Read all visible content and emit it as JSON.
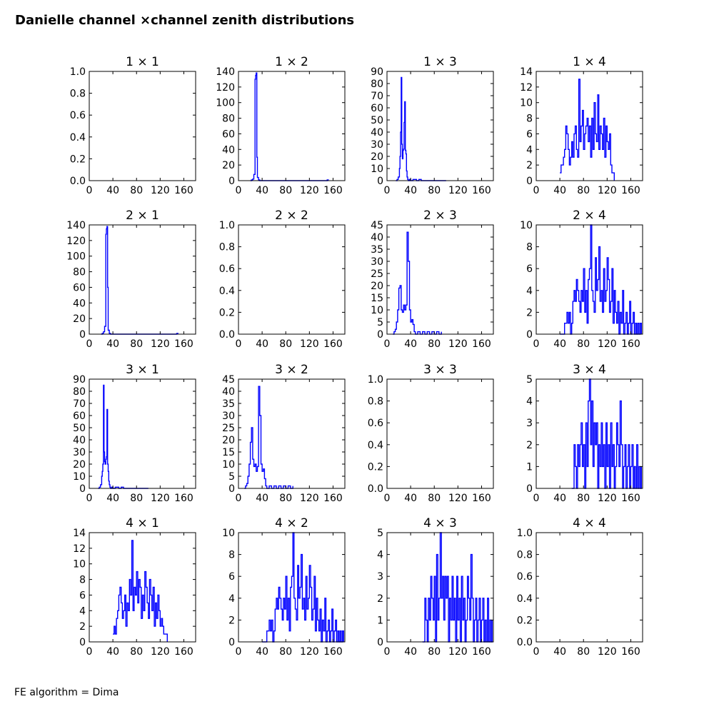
{
  "page": {
    "title": "Danielle channel ×channel zenith distributions",
    "footer": "FE algorithm = Dima"
  },
  "colors": {
    "line": "#0000ff",
    "axes": "#000000",
    "background": "#ffffff"
  },
  "chart_data": [
    {
      "type": "line",
      "title": "1 × 1",
      "xlim": [
        0,
        180
      ],
      "ylim": [
        0,
        1
      ],
      "xticks": [
        0,
        40,
        80,
        120,
        160
      ],
      "yticks": [
        "0.0",
        "0.2",
        "0.4",
        "0.6",
        "0.8",
        "1.0"
      ],
      "x": [],
      "values": []
    },
    {
      "type": "line",
      "title": "1 × 2",
      "xlim": [
        0,
        180
      ],
      "ylim": [
        0,
        140
      ],
      "xticks": [
        0,
        40,
        80,
        120,
        160
      ],
      "yticks": [
        "0",
        "20",
        "40",
        "60",
        "80",
        "100",
        "120",
        "140"
      ],
      "x": [
        20,
        22,
        24,
        26,
        28,
        29,
        30,
        31,
        32,
        34,
        36,
        40,
        150,
        152
      ],
      "values": [
        0,
        1,
        2,
        8,
        130,
        135,
        138,
        30,
        4,
        1,
        0,
        0,
        1,
        0
      ]
    },
    {
      "type": "line",
      "title": "1 × 3",
      "xlim": [
        0,
        180
      ],
      "ylim": [
        0,
        90
      ],
      "xticks": [
        0,
        40,
        80,
        120,
        160
      ],
      "yticks": [
        "0",
        "10",
        "20",
        "30",
        "40",
        "50",
        "60",
        "70",
        "80",
        "90"
      ],
      "x": [
        15,
        17,
        19,
        21,
        22,
        23,
        24,
        25,
        26,
        27,
        28,
        29,
        30,
        31,
        32,
        33,
        34,
        35,
        36,
        38,
        40,
        44,
        50,
        54,
        58,
        100
      ],
      "values": [
        0,
        1,
        3,
        10,
        20,
        40,
        85,
        30,
        18,
        25,
        26,
        48,
        65,
        25,
        22,
        8,
        3,
        1,
        0,
        1,
        0,
        1,
        0,
        1,
        0,
        0
      ]
    },
    {
      "type": "line",
      "title": "1 × 4",
      "xlim": [
        0,
        180
      ],
      "ylim": [
        0,
        14
      ],
      "xticks": [
        0,
        40,
        80,
        120,
        160
      ],
      "yticks": [
        "0",
        "2",
        "4",
        "6",
        "8",
        "10",
        "12",
        "14"
      ],
      "x": [
        40,
        42,
        44,
        46,
        48,
        50,
        52,
        54,
        56,
        58,
        60,
        62,
        64,
        66,
        68,
        70,
        72,
        74,
        76,
        78,
        80,
        82,
        84,
        86,
        88,
        90,
        92,
        94,
        96,
        98,
        100,
        102,
        104,
        106,
        108,
        110,
        112,
        114,
        116,
        118,
        120,
        122,
        124,
        126,
        128,
        130,
        132
      ],
      "values": [
        1,
        2,
        2,
        3,
        4,
        7,
        6,
        4,
        2,
        3,
        5,
        3,
        6,
        7,
        4,
        3,
        13,
        5,
        7,
        9,
        4,
        6,
        7,
        8,
        5,
        7,
        3,
        8,
        4,
        10,
        6,
        5,
        11,
        4,
        7,
        6,
        4,
        8,
        3,
        7,
        5,
        4,
        6,
        2,
        1,
        1,
        0
      ]
    },
    {
      "type": "line",
      "title": "2 × 1",
      "xlim": [
        0,
        180
      ],
      "ylim": [
        0,
        140
      ],
      "xticks": [
        0,
        40,
        80,
        120,
        160
      ],
      "yticks": [
        "0",
        "20",
        "40",
        "60",
        "80",
        "100",
        "120",
        "140"
      ],
      "x": [
        20,
        22,
        24,
        26,
        28,
        29,
        30,
        31,
        32,
        34,
        36,
        40,
        148,
        150
      ],
      "values": [
        0,
        1,
        3,
        10,
        128,
        135,
        138,
        60,
        5,
        1,
        0,
        0,
        1,
        0
      ]
    },
    {
      "type": "line",
      "title": "2 × 2",
      "xlim": [
        0,
        180
      ],
      "ylim": [
        0,
        1
      ],
      "xticks": [
        0,
        40,
        80,
        120,
        160
      ],
      "yticks": [
        "0.0",
        "0.2",
        "0.4",
        "0.6",
        "0.8",
        "1.0"
      ],
      "x": [],
      "values": []
    },
    {
      "type": "line",
      "title": "2 × 3",
      "xlim": [
        0,
        180
      ],
      "ylim": [
        0,
        45
      ],
      "xticks": [
        0,
        40,
        80,
        120,
        160
      ],
      "yticks": [
        "0",
        "5",
        "10",
        "15",
        "20",
        "25",
        "30",
        "35",
        "40",
        "45"
      ],
      "x": [
        10,
        12,
        14,
        16,
        18,
        20,
        22,
        24,
        26,
        28,
        30,
        32,
        34,
        36,
        38,
        40,
        42,
        44,
        46,
        48,
        52,
        56,
        60,
        64,
        68,
        72,
        76,
        80,
        84,
        88,
        92
      ],
      "values": [
        0,
        1,
        2,
        5,
        10,
        19,
        20,
        10,
        9,
        12,
        10,
        12,
        42,
        30,
        10,
        5,
        6,
        4,
        1,
        0,
        1,
        0,
        1,
        0,
        1,
        0,
        1,
        0,
        1,
        0,
        1
      ]
    },
    {
      "type": "line",
      "title": "2 × 4",
      "xlim": [
        0,
        180
      ],
      "ylim": [
        0,
        10
      ],
      "xticks": [
        0,
        40,
        80,
        120,
        160
      ],
      "yticks": [
        "0",
        "2",
        "4",
        "6",
        "8",
        "10"
      ],
      "x": [
        40,
        44,
        48,
        52,
        54,
        56,
        58,
        60,
        62,
        64,
        66,
        68,
        70,
        72,
        74,
        76,
        78,
        80,
        82,
        84,
        86,
        88,
        90,
        92,
        94,
        96,
        98,
        100,
        102,
        104,
        106,
        108,
        110,
        112,
        114,
        116,
        118,
        120,
        122,
        124,
        126,
        128,
        130,
        132,
        134,
        136,
        138,
        140,
        142,
        144,
        146,
        148,
        150,
        152,
        154,
        156,
        158,
        160,
        162,
        164,
        166,
        168,
        170,
        172,
        174,
        176,
        178
      ],
      "values": [
        0,
        0,
        1,
        2,
        1,
        2,
        0,
        1,
        3,
        4,
        3,
        5,
        4,
        3,
        2,
        4,
        3,
        6,
        2,
        4,
        1,
        5,
        6,
        10,
        4,
        3,
        2,
        7,
        4,
        5,
        8,
        3,
        4,
        2,
        6,
        3,
        4,
        7,
        5,
        2,
        3,
        6,
        1,
        4,
        2,
        1,
        3,
        0,
        2,
        1,
        4,
        0,
        1,
        2,
        0,
        1,
        3,
        0,
        1,
        2,
        0,
        1,
        0,
        1,
        0,
        1,
        0
      ]
    },
    {
      "type": "line",
      "title": "3 × 1",
      "xlim": [
        0,
        180
      ],
      "ylim": [
        0,
        90
      ],
      "xticks": [
        0,
        40,
        80,
        120,
        160
      ],
      "yticks": [
        "0",
        "10",
        "20",
        "30",
        "40",
        "50",
        "60",
        "70",
        "80",
        "90"
      ],
      "x": [
        15,
        17,
        19,
        21,
        22,
        23,
        24,
        25,
        26,
        27,
        28,
        29,
        30,
        31,
        32,
        33,
        34,
        35,
        36,
        38,
        40,
        44,
        50,
        54,
        58,
        100
      ],
      "values": [
        0,
        1,
        3,
        10,
        14,
        20,
        85,
        30,
        22,
        20,
        24,
        26,
        65,
        20,
        14,
        6,
        3,
        1,
        0,
        1,
        0,
        1,
        0,
        1,
        0,
        0
      ]
    },
    {
      "type": "line",
      "title": "3 × 2",
      "xlim": [
        0,
        180
      ],
      "ylim": [
        0,
        45
      ],
      "xticks": [
        0,
        40,
        80,
        120,
        160
      ],
      "yticks": [
        "0",
        "5",
        "10",
        "15",
        "20",
        "25",
        "30",
        "35",
        "40",
        "45"
      ],
      "x": [
        10,
        12,
        14,
        16,
        18,
        20,
        22,
        24,
        26,
        28,
        30,
        32,
        34,
        36,
        38,
        40,
        42,
        44,
        46,
        48,
        52,
        56,
        60,
        64,
        68,
        72,
        76,
        80,
        84,
        88,
        92
      ],
      "values": [
        0,
        1,
        2,
        5,
        10,
        19,
        25,
        12,
        9,
        10,
        7,
        9,
        42,
        30,
        10,
        7,
        8,
        4,
        1,
        0,
        1,
        0,
        1,
        0,
        1,
        0,
        1,
        0,
        1,
        0,
        1
      ]
    },
    {
      "type": "line",
      "title": "3 × 3",
      "xlim": [
        0,
        180
      ],
      "ylim": [
        0,
        1
      ],
      "xticks": [
        0,
        40,
        80,
        120,
        160
      ],
      "yticks": [
        "0.0",
        "0.2",
        "0.4",
        "0.6",
        "0.8",
        "1.0"
      ],
      "x": [],
      "values": []
    },
    {
      "type": "line",
      "title": "3 × 4",
      "xlim": [
        0,
        180
      ],
      "ylim": [
        0,
        5
      ],
      "xticks": [
        0,
        40,
        80,
        120,
        160
      ],
      "yticks": [
        "0",
        "1",
        "2",
        "3",
        "4",
        "5"
      ],
      "x": [
        60,
        64,
        66,
        68,
        70,
        72,
        74,
        76,
        78,
        80,
        82,
        84,
        86,
        88,
        90,
        92,
        94,
        96,
        98,
        100,
        102,
        104,
        106,
        108,
        110,
        112,
        114,
        116,
        118,
        120,
        122,
        124,
        126,
        128,
        130,
        132,
        134,
        136,
        138,
        140,
        142,
        144,
        146,
        148,
        150,
        152,
        154,
        156,
        158,
        160,
        162,
        164,
        166,
        168,
        170,
        172,
        174,
        176,
        178
      ],
      "values": [
        0,
        2,
        1,
        0,
        2,
        1,
        2,
        3,
        1,
        2,
        0,
        3,
        1,
        4,
        5,
        2,
        4,
        1,
        3,
        2,
        3,
        0,
        2,
        1,
        3,
        1,
        2,
        0,
        3,
        1,
        2,
        0,
        3,
        1,
        2,
        0,
        1,
        3,
        2,
        1,
        4,
        2,
        0,
        1,
        2,
        0,
        1,
        2,
        0,
        1,
        2,
        0,
        1,
        0,
        2,
        0,
        1,
        0,
        1
      ]
    },
    {
      "type": "line",
      "title": "4 × 1",
      "xlim": [
        0,
        180
      ],
      "ylim": [
        0,
        14
      ],
      "xticks": [
        0,
        40,
        80,
        120,
        160
      ],
      "yticks": [
        "0",
        "2",
        "4",
        "6",
        "8",
        "10",
        "12",
        "14"
      ],
      "x": [
        40,
        42,
        44,
        46,
        48,
        50,
        52,
        54,
        56,
        58,
        60,
        62,
        64,
        66,
        68,
        70,
        72,
        74,
        76,
        78,
        80,
        82,
        84,
        86,
        88,
        90,
        92,
        94,
        96,
        98,
        100,
        102,
        104,
        106,
        108,
        110,
        112,
        114,
        116,
        118,
        120,
        122,
        124,
        126,
        128,
        130,
        132
      ],
      "values": [
        1,
        2,
        1,
        3,
        4,
        6,
        7,
        5,
        3,
        4,
        6,
        2,
        5,
        4,
        8,
        6,
        13,
        4,
        7,
        6,
        9,
        5,
        8,
        7,
        3,
        6,
        4,
        9,
        7,
        5,
        3,
        8,
        6,
        4,
        7,
        2,
        5,
        3,
        6,
        4,
        2,
        3,
        2,
        1,
        1,
        1,
        0
      ]
    },
    {
      "type": "line",
      "title": "4 × 2",
      "xlim": [
        0,
        180
      ],
      "ylim": [
        0,
        10
      ],
      "xticks": [
        0,
        40,
        80,
        120,
        160
      ],
      "yticks": [
        "0",
        "2",
        "4",
        "6",
        "8",
        "10"
      ],
      "x": [
        40,
        44,
        48,
        52,
        54,
        56,
        58,
        60,
        62,
        64,
        66,
        68,
        70,
        72,
        74,
        76,
        78,
        80,
        82,
        84,
        86,
        88,
        90,
        92,
        94,
        96,
        98,
        100,
        102,
        104,
        106,
        108,
        110,
        112,
        114,
        116,
        118,
        120,
        122,
        124,
        126,
        128,
        130,
        132,
        134,
        136,
        138,
        140,
        142,
        144,
        146,
        148,
        150,
        152,
        154,
        156,
        158,
        160,
        162,
        164,
        166,
        168,
        170,
        172,
        174,
        176,
        178
      ],
      "values": [
        0,
        0,
        1,
        2,
        1,
        2,
        0,
        1,
        3,
        4,
        3,
        5,
        4,
        3,
        2,
        4,
        3,
        6,
        2,
        4,
        1,
        5,
        6,
        10,
        4,
        3,
        2,
        7,
        4,
        5,
        8,
        3,
        4,
        2,
        6,
        3,
        4,
        7,
        5,
        2,
        3,
        6,
        1,
        4,
        2,
        1,
        3,
        0,
        2,
        1,
        4,
        0,
        1,
        2,
        0,
        1,
        3,
        0,
        1,
        2,
        0,
        1,
        0,
        1,
        0,
        1,
        0
      ]
    },
    {
      "type": "line",
      "title": "4 × 3",
      "xlim": [
        0,
        180
      ],
      "ylim": [
        0,
        5
      ],
      "xticks": [
        0,
        40,
        80,
        120,
        160
      ],
      "yticks": [
        "0",
        "1",
        "2",
        "3",
        "4",
        "5"
      ],
      "x": [
        60,
        64,
        66,
        68,
        70,
        72,
        74,
        76,
        78,
        80,
        82,
        84,
        86,
        88,
        90,
        92,
        94,
        96,
        98,
        100,
        102,
        104,
        106,
        108,
        110,
        112,
        114,
        116,
        118,
        120,
        122,
        124,
        126,
        128,
        130,
        132,
        134,
        136,
        138,
        140,
        142,
        144,
        146,
        148,
        150,
        152,
        154,
        156,
        158,
        160,
        162,
        164,
        166,
        168,
        170,
        172,
        174,
        176,
        178
      ],
      "values": [
        0,
        2,
        1,
        0,
        2,
        1,
        3,
        2,
        1,
        3,
        0,
        4,
        1,
        2,
        5,
        2,
        3,
        1,
        3,
        2,
        3,
        0,
        2,
        1,
        3,
        1,
        2,
        0,
        3,
        1,
        2,
        0,
        3,
        1,
        2,
        0,
        1,
        3,
        2,
        1,
        4,
        2,
        0,
        1,
        2,
        0,
        1,
        2,
        0,
        1,
        2,
        0,
        1,
        0,
        2,
        0,
        1,
        0,
        1
      ]
    },
    {
      "type": "line",
      "title": "4 × 4",
      "xlim": [
        0,
        180
      ],
      "ylim": [
        0,
        1
      ],
      "xticks": [
        0,
        40,
        80,
        120,
        160
      ],
      "yticks": [
        "0.0",
        "0.2",
        "0.4",
        "0.6",
        "0.8",
        "1.0"
      ],
      "x": [],
      "values": []
    }
  ]
}
